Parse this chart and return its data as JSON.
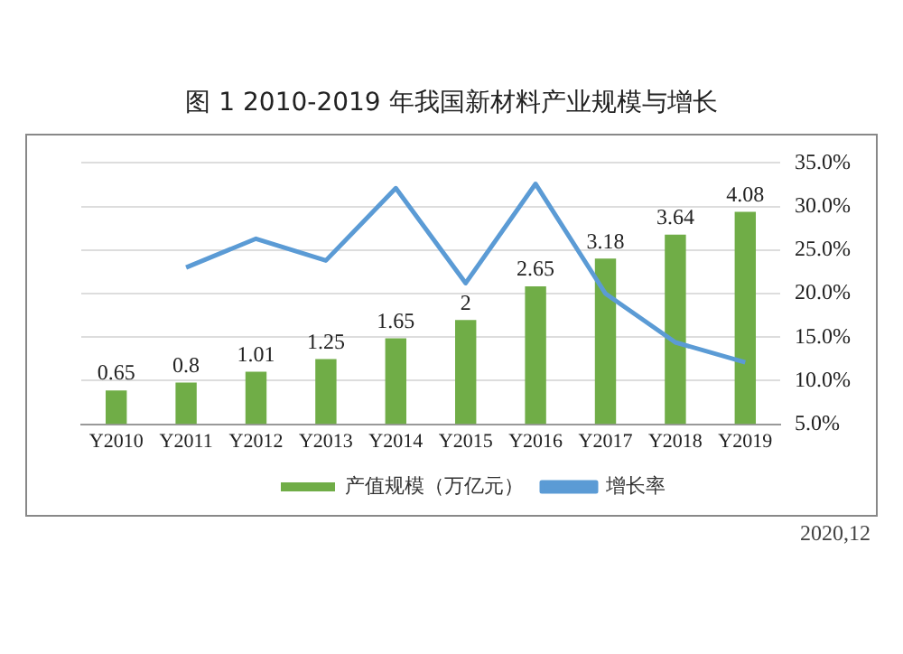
{
  "chart_data": {
    "type": "bar",
    "title": "图 1    2010-2019 年我国新材料产业规模与增长",
    "categories": [
      "Y2010",
      "Y2011",
      "Y2012",
      "Y2013",
      "Y2014",
      "Y2015",
      "Y2016",
      "Y2017",
      "Y2018",
      "Y2019"
    ],
    "series": [
      {
        "name": "产值规模（万亿元）",
        "color": "#70ad47",
        "values": [
          0.65,
          0.8,
          1.01,
          1.25,
          1.65,
          2,
          2.65,
          3.18,
          3.64,
          4.08
        ],
        "value_labels": [
          "0.65",
          "0.8",
          "1.01",
          "1.25",
          "1.65",
          "2",
          "2.65",
          "3.18",
          "3.64",
          "4.08"
        ]
      },
      {
        "name": "增长率",
        "type": "line",
        "axis": "y2",
        "color": "#5b9bd5",
        "values": [
          null,
          23.0,
          26.3,
          23.8,
          32.1,
          21.2,
          32.6,
          20.0,
          14.4,
          12.1
        ]
      }
    ],
    "y2lim": [
      5,
      35
    ],
    "y2ticks": [
      {
        "value": 5,
        "label": "5.0%"
      },
      {
        "value": 10,
        "label": "10.0%"
      },
      {
        "value": 15,
        "label": "15.0%"
      },
      {
        "value": 20,
        "label": "20.0%"
      },
      {
        "value": 25,
        "label": "25.0%"
      },
      {
        "value": 30,
        "label": "30.0%"
      },
      {
        "value": 35,
        "label": "35.0%"
      }
    ],
    "grid": "y",
    "legend": "bottom",
    "marker": "none",
    "line_style": "solid",
    "annotations": [
      "2020,12"
    ]
  }
}
